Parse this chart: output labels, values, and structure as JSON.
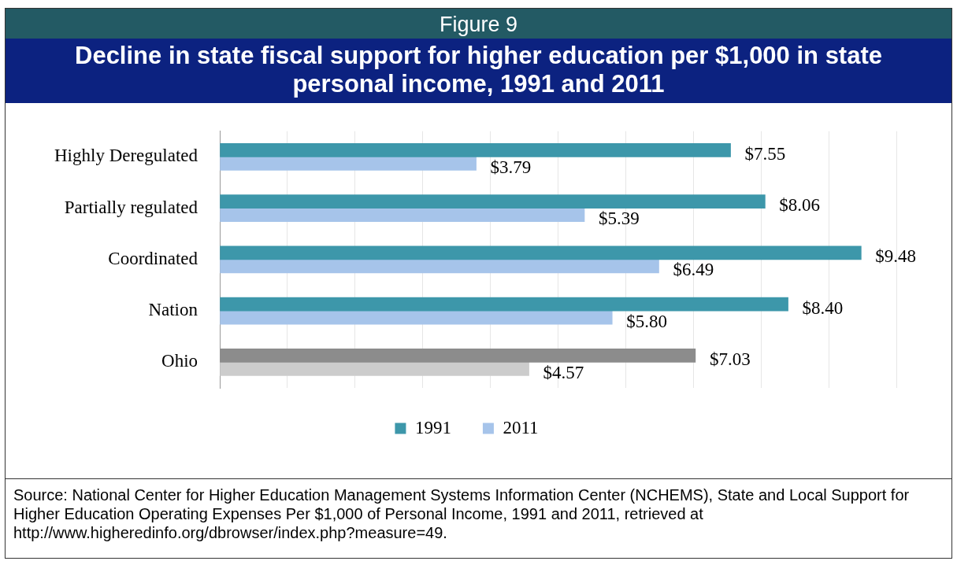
{
  "chart_data": {
    "type": "bar",
    "orientation": "horizontal",
    "title": "Figure 9",
    "subtitle": "Decline in state fiscal support for higher education per $1,000 in state personal income, 1991 and 2011",
    "categories": [
      "Highly Deregulated",
      "Partially regulated",
      "Coordinated",
      "Nation",
      "Ohio"
    ],
    "series": [
      {
        "name": "1991",
        "color": "#3d97aa",
        "colors": [
          "#3d97aa",
          "#3d97aa",
          "#3d97aa",
          "#3d97aa",
          "#8c8c8c"
        ],
        "values": [
          7.55,
          8.06,
          9.48,
          8.4,
          7.03
        ],
        "value_labels": [
          "$7.55",
          "$8.06",
          "$9.48",
          "$8.40",
          "$7.03"
        ]
      },
      {
        "name": "2011",
        "color": "#a6c4ea",
        "colors": [
          "#a6c4ea",
          "#a6c4ea",
          "#a6c4ea",
          "#a6c4ea",
          "#cccccc"
        ],
        "values": [
          3.79,
          5.39,
          6.49,
          5.8,
          4.57
        ],
        "value_labels": [
          "$3.79",
          "$5.39",
          "$6.49",
          "$5.80",
          "$4.57"
        ]
      }
    ],
    "xlim": [
      0,
      10
    ],
    "xticks": [
      {
        "value": 0,
        "label": null
      },
      {
        "value": 1,
        "label": null
      },
      {
        "value": 2,
        "label": null
      },
      {
        "value": 3,
        "label": null
      },
      {
        "value": 4,
        "label": null
      },
      {
        "value": 5,
        "label": null
      },
      {
        "value": 6,
        "label": null
      },
      {
        "value": 7,
        "label": null
      },
      {
        "value": 8,
        "label": null
      },
      {
        "value": 9,
        "label": null
      },
      {
        "value": 10,
        "label": null
      }
    ],
    "grid": "x",
    "tick_labels": "y",
    "legend": "bottom",
    "annotations": [
      "Source: National Center for Higher Education Management Systems Information Center (NCHEMS), State and Local Support for Higher Education Operating Expenses Per $1,000 of Personal Income, 1991 and 2011, retrieved at  http://www.higheredinfo.org/dbrowser/index.php?measure=49."
    ]
  }
}
